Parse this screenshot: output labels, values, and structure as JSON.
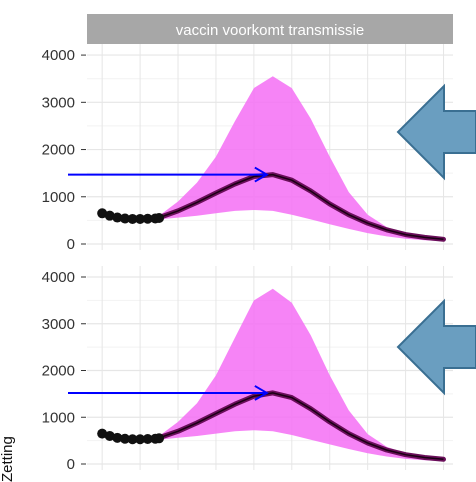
{
  "chart_data": [
    {
      "type": "area",
      "title": "vaccin voorkomt transmissie",
      "ylabel": "",
      "xlabel": "",
      "ylim": [
        0,
        4150
      ],
      "yticks": [
        0,
        1000,
        2000,
        3000,
        4000
      ],
      "grid": true,
      "observed": {
        "x": [
          0.0,
          0.04,
          0.08,
          0.12,
          0.16,
          0.2,
          0.24,
          0.28,
          0.3
        ],
        "y": [
          650,
          600,
          560,
          540,
          530,
          530,
          535,
          540,
          550
        ]
      },
      "series": [
        {
          "x": [
            0.3,
            0.4,
            0.5,
            0.6,
            0.7,
            0.8,
            0.9,
            1.0,
            1.1,
            1.2,
            1.3,
            1.4,
            1.5,
            1.6,
            1.7,
            1.8
          ],
          "median": [
            560,
            700,
            880,
            1080,
            1270,
            1430,
            1470,
            1350,
            1120,
            850,
            620,
            440,
            300,
            200,
            140,
            100
          ],
          "lower": [
            520,
            560,
            600,
            650,
            700,
            720,
            700,
            620,
            520,
            420,
            320,
            230,
            160,
            110,
            80,
            60
          ],
          "upper": [
            600,
            900,
            1300,
            1850,
            2600,
            3300,
            3550,
            3300,
            2650,
            1850,
            1100,
            620,
            360,
            220,
            160,
            120
          ]
        }
      ],
      "annotations": [
        {
          "type": "arrow",
          "color": "#0000ff",
          "target_value": 1470
        },
        {
          "type": "block-arrow",
          "direction": "left",
          "color": "#6a9ec0"
        }
      ]
    },
    {
      "type": "area",
      "title": "",
      "ylabel": "Zetting",
      "xlabel": "",
      "ylim": [
        0,
        4150
      ],
      "yticks": [
        0,
        1000,
        2000,
        3000,
        4000
      ],
      "grid": true,
      "observed": {
        "x": [
          0.0,
          0.04,
          0.08,
          0.12,
          0.16,
          0.2,
          0.24,
          0.28,
          0.3
        ],
        "y": [
          650,
          600,
          560,
          540,
          530,
          530,
          535,
          540,
          550
        ]
      },
      "series": [
        {
          "x": [
            0.3,
            0.4,
            0.5,
            0.6,
            0.7,
            0.8,
            0.9,
            1.0,
            1.1,
            1.2,
            1.3,
            1.4,
            1.5,
            1.6,
            1.7,
            1.8
          ],
          "median": [
            560,
            700,
            880,
            1080,
            1280,
            1450,
            1520,
            1420,
            1180,
            900,
            650,
            450,
            300,
            200,
            140,
            100
          ],
          "lower": [
            520,
            560,
            600,
            650,
            700,
            720,
            700,
            620,
            520,
            420,
            320,
            230,
            160,
            110,
            80,
            60
          ],
          "upper": [
            600,
            900,
            1300,
            1900,
            2700,
            3500,
            3750,
            3450,
            2750,
            1900,
            1150,
            640,
            370,
            230,
            170,
            120
          ]
        }
      ],
      "annotations": [
        {
          "type": "arrow",
          "color": "#0000ff",
          "target_value": 1520
        },
        {
          "type": "block-arrow",
          "direction": "left",
          "color": "#6a9ec0"
        }
      ]
    }
  ],
  "colors": {
    "band": "#f46ff4",
    "median_line": "#6a0f5a",
    "observed": "#111111",
    "strip_bg": "#a7a7a7",
    "grid": "#e6e6e6",
    "annotation_arrow": "#0000ff",
    "block_arrow_fill": "#6a9ec0",
    "block_arrow_stroke": "#3a6f92"
  }
}
